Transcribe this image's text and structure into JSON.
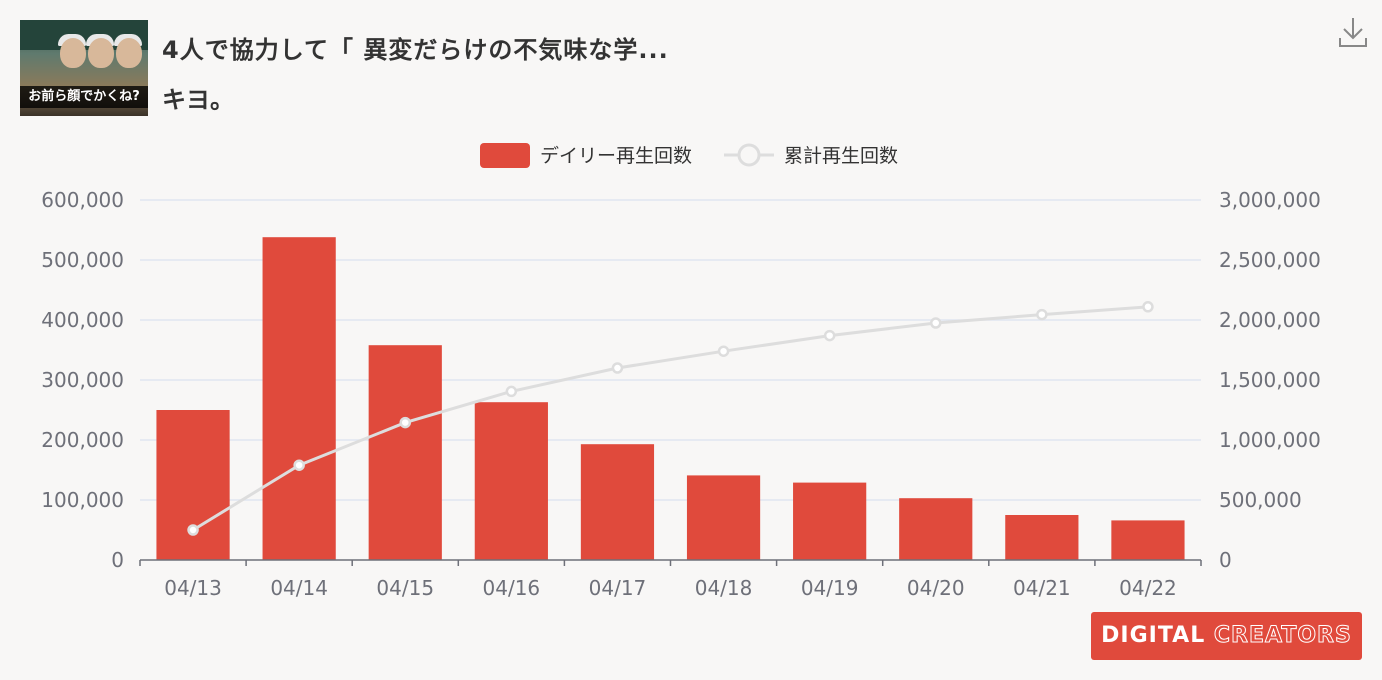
{
  "video": {
    "title": "4人で協力して「 異変だらけの不気味な学...",
    "channel": "キヨ。",
    "thumbnail_caption": "お前ら顔でかくね?"
  },
  "toolbar": {
    "download_icon": "download-icon"
  },
  "brand": {
    "logo_text_1": "DIGITAL",
    "logo_text_2": "CREATORS"
  },
  "colors": {
    "bar": "#e04a3c",
    "line": "#dddddd",
    "grid": "#e0e6f1",
    "axis_text": "#6e7079"
  },
  "chart_data": {
    "type": "bar+line",
    "categories": [
      "04/13",
      "04/14",
      "04/15",
      "04/16",
      "04/17",
      "04/18",
      "04/19",
      "04/20",
      "04/21",
      "04/22"
    ],
    "series": [
      {
        "name": "デイリー再生回数",
        "type": "bar",
        "axis": "left",
        "values": [
          250000,
          538000,
          358000,
          263000,
          193000,
          141000,
          129000,
          103000,
          75000,
          66000
        ]
      },
      {
        "name": "累計再生回数",
        "type": "line",
        "axis": "right",
        "values": [
          250000,
          790000,
          1145000,
          1405000,
          1600000,
          1740000,
          1870000,
          1975000,
          2045000,
          2110000
        ]
      }
    ],
    "y_left": {
      "min": 0,
      "max": 600000,
      "ticks": [
        "0",
        "100,000",
        "200,000",
        "300,000",
        "400,000",
        "500,000",
        "600,000"
      ]
    },
    "y_right": {
      "min": 0,
      "max": 3000000,
      "ticks": [
        "0",
        "500,000",
        "1,000,000",
        "1,500,000",
        "2,000,000",
        "2,500,000",
        "3,000,000"
      ]
    },
    "legend_position": "top-center",
    "grid": true
  }
}
